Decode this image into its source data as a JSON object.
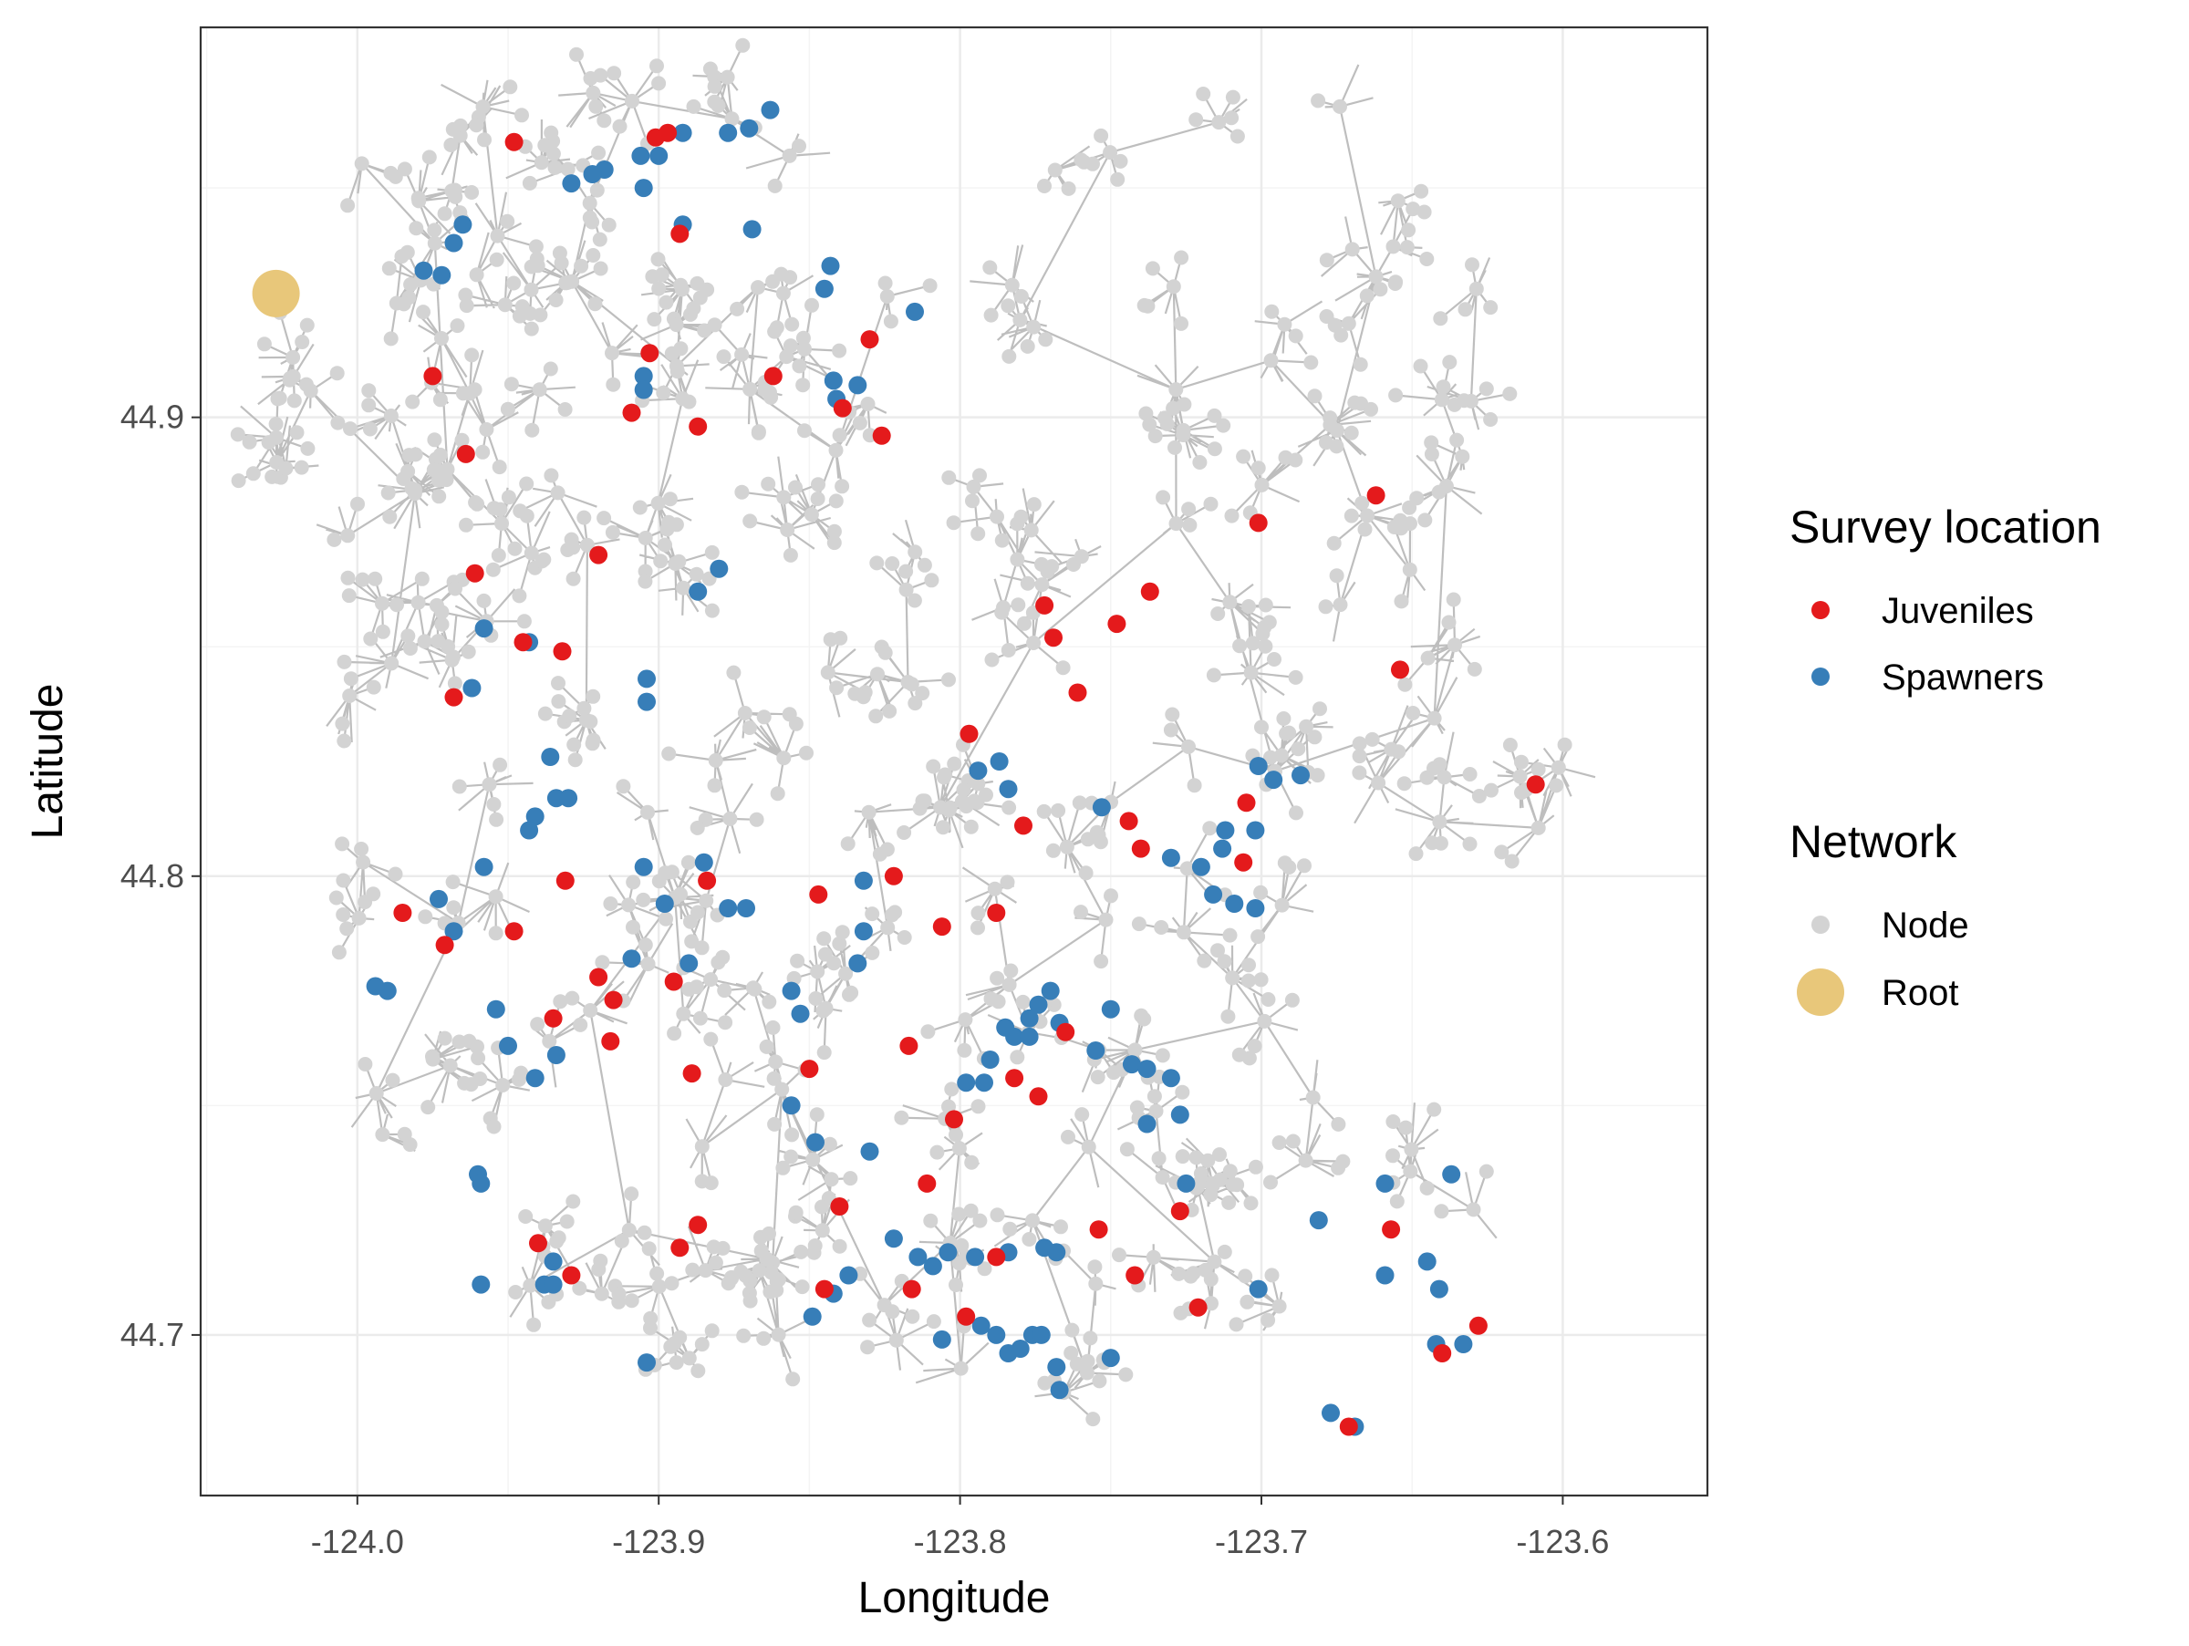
{
  "chart_data": {
    "type": "scatter",
    "title": "",
    "xlabel": "Longitude",
    "ylabel": "Latitude",
    "xlim": [
      -124.052,
      -123.552
    ],
    "ylim": [
      44.665,
      44.985
    ],
    "x_ticks": [
      -124.0,
      -123.9,
      -123.8,
      -123.7,
      -123.6
    ],
    "x_tick_labels": [
      "-124.0",
      "-123.9",
      "-123.8",
      "-123.7",
      "-123.6"
    ],
    "y_ticks": [
      44.7,
      44.8,
      44.9
    ],
    "y_tick_labels": [
      "44.7",
      "44.8",
      "44.9"
    ],
    "grid": true,
    "legend_position": "right",
    "colors": {
      "juveniles": "#E41A1C",
      "spawners": "#377EB8",
      "node": "#D3D3D3",
      "root": "#E8C77A",
      "edge": "#BEBEBE",
      "grid_major": "#EBEBEB",
      "grid_minor": "#F4F4F4",
      "panel_border": "#333333",
      "tick": "#333333"
    },
    "legend": {
      "survey_title": "Survey location",
      "survey_items": [
        "Juveniles",
        "Spawners"
      ],
      "network_title": "Network",
      "network_items": [
        "Node",
        "Root"
      ]
    },
    "root": {
      "x": -124.027,
      "y": 44.927
    },
    "series": [
      {
        "name": "Juveniles",
        "points": [
          [
            -123.948,
            44.96
          ],
          [
            -123.897,
            44.962
          ],
          [
            -123.893,
            44.94
          ],
          [
            -123.903,
            44.914
          ],
          [
            -123.975,
            44.909
          ],
          [
            -123.887,
            44.898
          ],
          [
            -123.909,
            44.901
          ],
          [
            -123.964,
            44.892
          ],
          [
            -123.862,
            44.909
          ],
          [
            -123.839,
            44.902
          ],
          [
            -123.83,
            44.917
          ],
          [
            -123.826,
            44.896
          ],
          [
            -123.92,
            44.87
          ],
          [
            -123.961,
            44.866
          ],
          [
            -123.945,
            44.851
          ],
          [
            -123.932,
            44.849
          ],
          [
            -123.968,
            44.839
          ],
          [
            -123.772,
            44.859
          ],
          [
            -123.769,
            44.852
          ],
          [
            -123.748,
            44.855
          ],
          [
            -123.737,
            44.862
          ],
          [
            -123.761,
            44.84
          ],
          [
            -123.701,
            44.877
          ],
          [
            -123.662,
            44.883
          ],
          [
            -123.654,
            44.845
          ],
          [
            -123.609,
            44.82
          ],
          [
            -123.797,
            44.831
          ],
          [
            -123.779,
            44.811
          ],
          [
            -123.744,
            44.812
          ],
          [
            -123.74,
            44.806
          ],
          [
            -123.705,
            44.816
          ],
          [
            -123.706,
            44.803
          ],
          [
            -123.931,
            44.799
          ],
          [
            -123.884,
            44.799
          ],
          [
            -123.847,
            44.796
          ],
          [
            -123.822,
            44.8
          ],
          [
            -123.806,
            44.789
          ],
          [
            -123.788,
            44.792
          ],
          [
            -123.985,
            44.792
          ],
          [
            -123.971,
            44.785
          ],
          [
            -123.948,
            44.788
          ],
          [
            -123.92,
            44.778
          ],
          [
            -123.915,
            44.773
          ],
          [
            -123.895,
            44.777
          ],
          [
            -123.935,
            44.769
          ],
          [
            -123.916,
            44.764
          ],
          [
            -123.889,
            44.757
          ],
          [
            -123.85,
            44.758
          ],
          [
            -123.817,
            44.763
          ],
          [
            -123.765,
            44.766
          ],
          [
            -123.782,
            44.756
          ],
          [
            -123.774,
            44.752
          ],
          [
            -123.802,
            44.747
          ],
          [
            -123.84,
            44.728
          ],
          [
            -123.811,
            44.733
          ],
          [
            -123.754,
            44.723
          ],
          [
            -123.727,
            44.727
          ],
          [
            -123.657,
            44.723
          ],
          [
            -123.94,
            44.72
          ],
          [
            -123.929,
            44.713
          ],
          [
            -123.887,
            44.724
          ],
          [
            -123.893,
            44.719
          ],
          [
            -123.845,
            44.71
          ],
          [
            -123.816,
            44.71
          ],
          [
            -123.798,
            44.704
          ],
          [
            -123.788,
            44.717
          ],
          [
            -123.742,
            44.713
          ],
          [
            -123.721,
            44.706
          ],
          [
            -123.64,
            44.696
          ],
          [
            -123.628,
            44.702
          ],
          [
            -123.671,
            44.68
          ],
          [
            -123.901,
            44.961
          ]
        ]
      },
      {
        "name": "Spawners",
        "points": [
          [
            -123.892,
            44.962
          ],
          [
            -123.877,
            44.962
          ],
          [
            -123.87,
            44.963
          ],
          [
            -123.863,
            44.967
          ],
          [
            -123.9,
            44.957
          ],
          [
            -123.906,
            44.957
          ],
          [
            -123.918,
            44.954
          ],
          [
            -123.922,
            44.953
          ],
          [
            -123.929,
            44.951
          ],
          [
            -123.905,
            44.95
          ],
          [
            -123.892,
            44.942
          ],
          [
            -123.869,
            44.941
          ],
          [
            -123.965,
            44.942
          ],
          [
            -123.968,
            44.938
          ],
          [
            -123.978,
            44.932
          ],
          [
            -123.972,
            44.931
          ],
          [
            -123.843,
            44.933
          ],
          [
            -123.845,
            44.928
          ],
          [
            -123.815,
            44.923
          ],
          [
            -123.905,
            44.909
          ],
          [
            -123.905,
            44.906
          ],
          [
            -123.842,
            44.908
          ],
          [
            -123.834,
            44.907
          ],
          [
            -123.841,
            44.904
          ],
          [
            -123.887,
            44.862
          ],
          [
            -123.88,
            44.867
          ],
          [
            -123.958,
            44.854
          ],
          [
            -123.943,
            44.851
          ],
          [
            -123.904,
            44.843
          ],
          [
            -123.904,
            44.838
          ],
          [
            -123.962,
            44.841
          ],
          [
            -123.936,
            44.826
          ],
          [
            -123.934,
            44.817
          ],
          [
            -123.93,
            44.817
          ],
          [
            -123.941,
            44.813
          ],
          [
            -123.943,
            44.81
          ],
          [
            -123.794,
            44.823
          ],
          [
            -123.787,
            44.825
          ],
          [
            -123.784,
            44.819
          ],
          [
            -123.753,
            44.815
          ],
          [
            -123.701,
            44.824
          ],
          [
            -123.696,
            44.821
          ],
          [
            -123.687,
            44.822
          ],
          [
            -123.702,
            44.81
          ],
          [
            -123.712,
            44.81
          ],
          [
            -123.713,
            44.806
          ],
          [
            -123.73,
            44.804
          ],
          [
            -123.72,
            44.802
          ],
          [
            -123.716,
            44.796
          ],
          [
            -123.709,
            44.794
          ],
          [
            -123.702,
            44.793
          ],
          [
            -123.885,
            44.803
          ],
          [
            -123.905,
            44.802
          ],
          [
            -123.958,
            44.802
          ],
          [
            -123.898,
            44.794
          ],
          [
            -123.877,
            44.793
          ],
          [
            -123.871,
            44.793
          ],
          [
            -123.832,
            44.799
          ],
          [
            -123.832,
            44.788
          ],
          [
            -123.834,
            44.781
          ],
          [
            -123.909,
            44.782
          ],
          [
            -123.89,
            44.781
          ],
          [
            -123.99,
            44.775
          ],
          [
            -123.973,
            44.795
          ],
          [
            -123.968,
            44.788
          ],
          [
            -123.954,
            44.771
          ],
          [
            -123.856,
            44.775
          ],
          [
            -123.853,
            44.77
          ],
          [
            -123.774,
            44.772
          ],
          [
            -123.77,
            44.775
          ],
          [
            -123.767,
            44.768
          ],
          [
            -123.777,
            44.769
          ],
          [
            -123.782,
            44.765
          ],
          [
            -123.785,
            44.767
          ],
          [
            -123.777,
            44.765
          ],
          [
            -123.75,
            44.771
          ],
          [
            -123.755,
            44.762
          ],
          [
            -123.743,
            44.759
          ],
          [
            -123.738,
            44.758
          ],
          [
            -123.73,
            44.756
          ],
          [
            -123.79,
            44.76
          ],
          [
            -123.792,
            44.755
          ],
          [
            -123.798,
            44.755
          ],
          [
            -123.934,
            44.761
          ],
          [
            -123.941,
            44.756
          ],
          [
            -123.856,
            44.75
          ],
          [
            -123.848,
            44.742
          ],
          [
            -123.83,
            44.74
          ],
          [
            -123.727,
            44.748
          ],
          [
            -123.738,
            44.746
          ],
          [
            -123.725,
            44.733
          ],
          [
            -123.96,
            44.735
          ],
          [
            -123.959,
            44.733
          ],
          [
            -123.994,
            44.776
          ],
          [
            -123.95,
            44.763
          ],
          [
            -123.822,
            44.721
          ],
          [
            -123.814,
            44.717
          ],
          [
            -123.809,
            44.715
          ],
          [
            -123.804,
            44.718
          ],
          [
            -123.795,
            44.717
          ],
          [
            -123.784,
            44.718
          ],
          [
            -123.772,
            44.719
          ],
          [
            -123.768,
            44.718
          ],
          [
            -123.837,
            44.713
          ],
          [
            -123.842,
            44.709
          ],
          [
            -123.849,
            44.704
          ],
          [
            -123.701,
            44.71
          ],
          [
            -123.681,
            44.725
          ],
          [
            -123.659,
            44.713
          ],
          [
            -123.659,
            44.733
          ],
          [
            -123.645,
            44.716
          ],
          [
            -123.641,
            44.71
          ],
          [
            -123.637,
            44.735
          ],
          [
            -123.642,
            44.698
          ],
          [
            -123.633,
            44.698
          ],
          [
            -123.938,
            44.711
          ],
          [
            -123.935,
            44.711
          ],
          [
            -123.935,
            44.716
          ],
          [
            -123.959,
            44.711
          ],
          [
            -123.904,
            44.694
          ],
          [
            -123.806,
            44.699
          ],
          [
            -123.793,
            44.702
          ],
          [
            -123.788,
            44.7
          ],
          [
            -123.784,
            44.696
          ],
          [
            -123.776,
            44.7
          ],
          [
            -123.773,
            44.7
          ],
          [
            -123.78,
            44.697
          ],
          [
            -123.768,
            44.693
          ],
          [
            -123.767,
            44.688
          ],
          [
            -123.75,
            44.695
          ],
          [
            -123.677,
            44.683
          ],
          [
            -123.669,
            44.68
          ]
        ]
      }
    ]
  }
}
